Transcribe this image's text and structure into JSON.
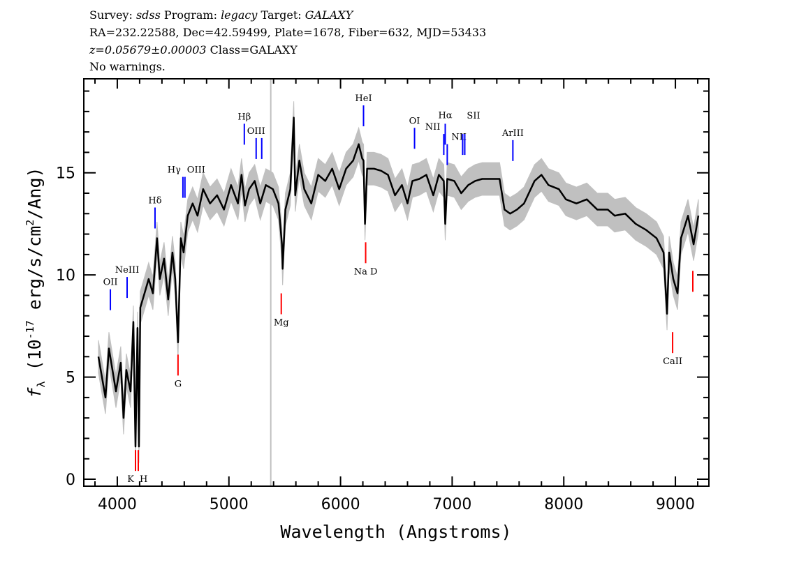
{
  "header": {
    "survey_label": "Survey:",
    "survey": "sdss",
    "program_label": "Program:",
    "program": "legacy",
    "target_label": "Target:",
    "target": "GALAXY",
    "line2": "RA=232.22588, Dec=42.59499, Plate=1678, Fiber=632, MJD=53433",
    "redshift": "z=0.05679±0.00003",
    "class": "Class=GALAXY",
    "warnings": "No warnings."
  },
  "chart_data": {
    "type": "line",
    "xlabel": "Wavelength (Angstroms)",
    "ylabel": {
      "symbol": "f",
      "sub": "λ",
      "pre": " (10",
      "exp": "-17",
      "mid": " erg/s/cm",
      "exp2": "2",
      "post": "/Ang)"
    },
    "xlim": [
      3700,
      9300
    ],
    "ylim": [
      -0.34,
      19.6
    ],
    "xticks": [
      4000,
      5000,
      6000,
      7000,
      8000,
      9000
    ],
    "yticks": [
      0,
      5,
      10,
      15
    ],
    "grid": false,
    "colors": {
      "flux": "#000000",
      "error": "#c0c0c0",
      "emission": "#0000ff",
      "absorption": "#ff0000",
      "masked": "#c0c0c0"
    },
    "masked_wavelength": 5375,
    "error": 0.8,
    "spectrum": {
      "wavelength": [
        3831,
        3894,
        3925,
        3988,
        4031,
        4056,
        4081,
        4119,
        4144,
        4163,
        4181,
        4194,
        4206,
        4244,
        4281,
        4319,
        4356,
        4381,
        4419,
        4456,
        4494,
        4519,
        4544,
        4569,
        4594,
        4631,
        4675,
        4719,
        4769,
        4831,
        4894,
        4956,
        5019,
        5081,
        5113,
        5144,
        5181,
        5231,
        5281,
        5331,
        5394,
        5444,
        5475,
        5481,
        5506,
        5550,
        5581,
        5594,
        5631,
        5675,
        5738,
        5800,
        5863,
        5925,
        5988,
        6050,
        6113,
        6163,
        6194,
        6206,
        6219,
        6238,
        6300,
        6363,
        6425,
        6488,
        6550,
        6600,
        6644,
        6706,
        6769,
        6831,
        6881,
        6925,
        6938,
        6956,
        7019,
        7081,
        7144,
        7206,
        7269,
        7425,
        7469,
        7519,
        7581,
        7644,
        7738,
        7800,
        7863,
        7956,
        8019,
        8113,
        8206,
        8300,
        8394,
        8456,
        8550,
        8644,
        8738,
        8831,
        8894,
        8925,
        8944,
        8981,
        9019,
        9050,
        9113,
        9163,
        9206
      ],
      "flux": [
        6.0,
        4.0,
        6.4,
        4.3,
        5.7,
        3.0,
        5.35,
        4.3,
        7.7,
        1.6,
        7.4,
        1.6,
        8.4,
        9.1,
        9.8,
        9.1,
        11.8,
        9.8,
        10.8,
        8.8,
        11.1,
        9.8,
        6.7,
        11.8,
        11.1,
        12.9,
        13.5,
        12.9,
        14.2,
        13.5,
        13.9,
        13.2,
        14.4,
        13.5,
        14.9,
        13.4,
        14.2,
        14.6,
        13.5,
        14.4,
        14.2,
        13.5,
        11.5,
        10.3,
        13.2,
        14.2,
        17.7,
        13.9,
        15.6,
        14.2,
        13.5,
        14.9,
        14.6,
        15.2,
        14.2,
        15.2,
        15.6,
        16.4,
        15.7,
        15.6,
        12.5,
        15.2,
        15.2,
        15.1,
        14.9,
        13.9,
        14.4,
        13.5,
        14.6,
        14.7,
        14.9,
        13.9,
        14.9,
        14.6,
        12.5,
        14.7,
        14.6,
        14.0,
        14.4,
        14.6,
        14.7,
        14.7,
        13.2,
        13.0,
        13.2,
        13.5,
        14.6,
        14.9,
        14.4,
        14.2,
        13.7,
        13.5,
        13.7,
        13.2,
        13.2,
        12.9,
        13.0,
        12.5,
        12.2,
        11.8,
        11.1,
        8.1,
        11.1,
        9.8,
        9.1,
        11.8,
        12.9,
        11.5,
        12.9
      ]
    },
    "emission_lines": [
      {
        "label": "OII",
        "wavelength": 3938,
        "top": 9.3
      },
      {
        "label": "NeIII",
        "wavelength": 4088,
        "top": 9.9
      },
      {
        "label": "Hδ",
        "wavelength": 4338,
        "top": 13.3
      },
      {
        "label": "Hγ",
        "wavelength": 4588,
        "top": 14.8
      },
      {
        "label": "OIII",
        "wavelength": 4606,
        "top": 14.8
      },
      {
        "label": "Hβ",
        "wavelength": 5138,
        "top": 17.4
      },
      {
        "label": "OIII",
        "wavelength": 5244,
        "top": 16.7
      },
      {
        "label": "",
        "wavelength": 5294,
        "top": 16.7
      },
      {
        "label": "HeI",
        "wavelength": 6206,
        "top": 18.3
      },
      {
        "label": "OI",
        "wavelength": 6663,
        "top": 17.2
      },
      {
        "label": "NII",
        "wavelength": 6925,
        "top": 16.9
      },
      {
        "label": "Hα",
        "wavelength": 6938,
        "top": 17.4
      },
      {
        "label": "NII",
        "wavelength": 6956,
        "top": 16.4
      },
      {
        "label": "SII",
        "wavelength": 7094,
        "top": 16.9
      },
      {
        "label": "",
        "wavelength": 7113,
        "top": 16.9
      },
      {
        "label": "ArIII",
        "wavelength": 7544,
        "top": 16.6
      }
    ],
    "absorption_lines": [
      {
        "label": "K",
        "wavelength": 4163,
        "top": 1.43
      },
      {
        "label": "H",
        "wavelength": 4188,
        "top": 1.43
      },
      {
        "label": "G",
        "wavelength": 4544,
        "top": 6.1
      },
      {
        "label": "Mg",
        "wavelength": 5469,
        "top": 9.1
      },
      {
        "label": "Na D",
        "wavelength": 6225,
        "top": 11.6
      },
      {
        "label": "CaII",
        "wavelength": 8975,
        "top": 7.2
      },
      {
        "label": "",
        "wavelength": 9156,
        "top": 10.2
      }
    ]
  }
}
